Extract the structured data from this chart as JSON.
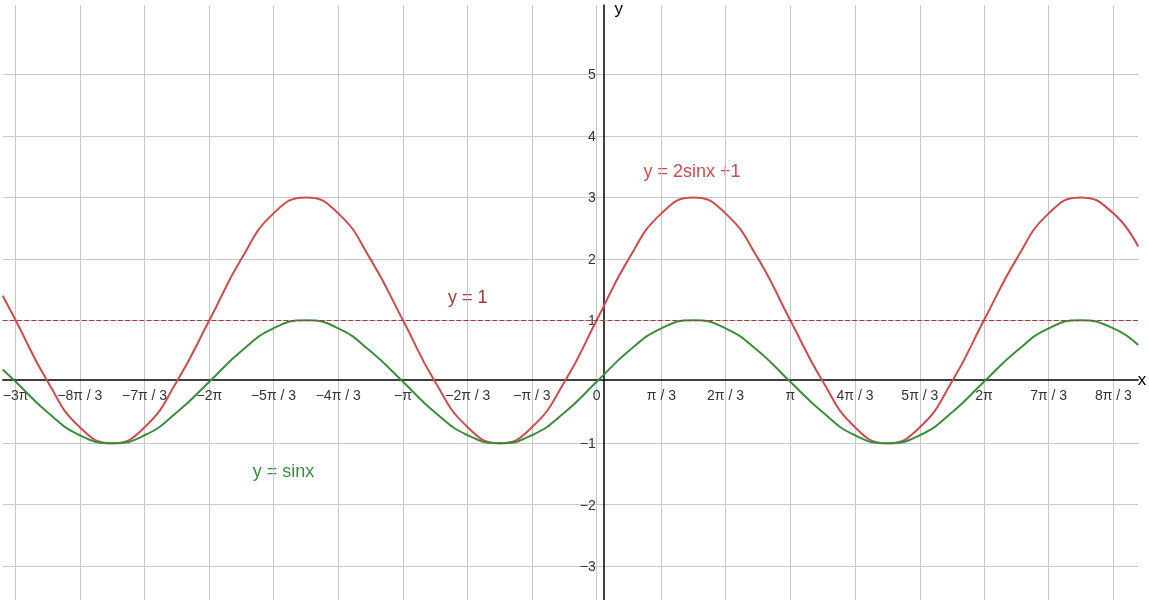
{
  "chart_data": {
    "type": "line",
    "xlabel": "x",
    "ylabel": "y",
    "xlim": [
      -9.63,
      8.78
    ],
    "ylim": [
      -3.55,
      6.13
    ],
    "xticks": [
      {
        "value": -9.42,
        "label": "−3π"
      },
      {
        "value": -8.38,
        "label": "−8π / 3"
      },
      {
        "value": -7.33,
        "label": "−7π / 3"
      },
      {
        "value": -6.28,
        "label": "−2π"
      },
      {
        "value": -5.24,
        "label": "−5π / 3"
      },
      {
        "value": -4.19,
        "label": "−4π / 3"
      },
      {
        "value": -3.14,
        "label": "−π"
      },
      {
        "value": -2.09,
        "label": "−2π / 3"
      },
      {
        "value": -1.05,
        "label": "−π / 3"
      },
      0,
      {
        "value": 1.05,
        "label": "π / 3"
      },
      {
        "value": 2.09,
        "label": "2π / 3"
      },
      {
        "value": 3.14,
        "label": "π"
      },
      {
        "value": 4.19,
        "label": "4π / 3"
      },
      {
        "value": 5.24,
        "label": "5π / 3"
      },
      {
        "value": 6.28,
        "label": "2π"
      },
      {
        "value": 7.33,
        "label": "7π / 3"
      },
      {
        "value": 8.38,
        "label": "8π / 3"
      }
    ],
    "yticks": [
      {
        "value": -3,
        "label": "−3"
      },
      {
        "value": -2,
        "label": "−2"
      },
      {
        "value": -1,
        "label": "−1"
      },
      1,
      2,
      3,
      4,
      5
    ],
    "grid": true,
    "marker": "none",
    "line_style": "solid",
    "ref_lines": [
      {
        "axis": "y",
        "value": 1,
        "label": "y = 1",
        "color": "#a03c3c",
        "line_style": "dashed"
      }
    ],
    "series": [
      {
        "name": "y = 2sinx +1",
        "color": "#cc4d4d",
        "x": [
          -9.63,
          -9.42,
          -8.9,
          -8.38,
          -7.85,
          -7.33,
          -6.81,
          -6.28,
          -5.76,
          -5.24,
          -4.71,
          -4.19,
          -3.67,
          -3.14,
          -2.62,
          -2.09,
          -1.57,
          -1.05,
          -0.52,
          0,
          0.52,
          1.05,
          1.57,
          2.09,
          2.62,
          3.14,
          3.67,
          4.19,
          4.71,
          5.24,
          5.76,
          6.28,
          6.81,
          7.33,
          7.85,
          8.38,
          8.78
        ],
        "values": [
          1.4,
          1,
          0,
          -0.74,
          -1,
          -0.74,
          0,
          1,
          2,
          2.74,
          3,
          2.74,
          2,
          1,
          0,
          -0.74,
          -1,
          -0.74,
          0,
          1,
          2,
          2.74,
          3,
          2.74,
          2,
          1,
          0,
          -0.74,
          -1,
          -0.74,
          0,
          1,
          2,
          2.74,
          3,
          2.74,
          2.2
        ]
      },
      {
        "name": "y = sinx",
        "color": "#3d8c3d",
        "x": [
          -9.63,
          -9.42,
          -8.9,
          -8.38,
          -7.85,
          -7.33,
          -6.81,
          -6.28,
          -5.76,
          -5.24,
          -4.71,
          -4.19,
          -3.67,
          -3.14,
          -2.62,
          -2.09,
          -1.57,
          -1.05,
          -0.52,
          0,
          0.52,
          1.05,
          1.57,
          2.09,
          2.62,
          3.14,
          3.67,
          4.19,
          4.71,
          5.24,
          5.76,
          6.28,
          6.81,
          7.33,
          7.85,
          8.38,
          8.78
        ],
        "values": [
          0.2,
          0,
          -0.5,
          -0.87,
          -1,
          -0.87,
          -0.5,
          0,
          0.5,
          0.87,
          1,
          0.87,
          0.5,
          0,
          -0.5,
          -0.87,
          -1,
          -0.87,
          -0.5,
          0,
          0.5,
          0.87,
          1,
          0.87,
          0.5,
          0,
          -0.5,
          -0.87,
          -1,
          -0.87,
          -0.5,
          0,
          0.5,
          0.87,
          1,
          0.87,
          0.6
        ]
      }
    ]
  }
}
